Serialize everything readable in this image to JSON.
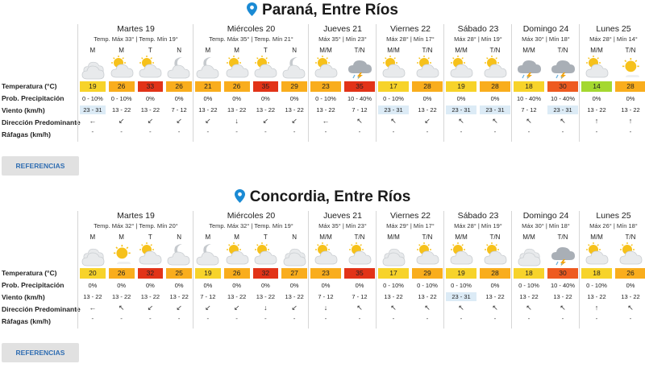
{
  "row_labels": {
    "temp": "Temperatura (°C)",
    "prob": "Prob. Precipitación",
    "wind": "Viento (km/h)",
    "dir": "Dirección Predominante",
    "gust": "Ráfagas (km/h)"
  },
  "references_label": "REFERENCIAS",
  "colors": {
    "c14": "#a4d830",
    "c17_20": "#f7d32a",
    "c21_29": "#f9ad1d",
    "c30": "#ee5a20",
    "c32_35": "#e23318",
    "wind_hl": "#dcebf6",
    "pin": "#1a8ad4"
  },
  "cities": [
    {
      "title": "Paraná, Entre Ríos",
      "days": [
        {
          "name": "Martes 19",
          "temps": "Temp. Máx 33° | Temp. Mín 19°",
          "periods": [
            {
              "label": "M",
              "icon": "cloudy",
              "temp": "19",
              "tcolor": "#f7d32a",
              "prob": "0 - 10%",
              "wind": "23 - 31",
              "hl": true,
              "dir": "←",
              "gust": "-"
            },
            {
              "label": "M",
              "icon": "partly-sunny",
              "temp": "26",
              "tcolor": "#f9ad1d",
              "prob": "0 - 10%",
              "wind": "13 - 22",
              "hl": false,
              "dir": "↙",
              "gust": "-"
            },
            {
              "label": "T",
              "icon": "partly-sunny",
              "temp": "33",
              "tcolor": "#e23318",
              "prob": "0%",
              "wind": "13 - 22",
              "hl": false,
              "dir": "↙",
              "gust": "-"
            },
            {
              "label": "N",
              "icon": "cloudy-moon",
              "temp": "26",
              "tcolor": "#f9ad1d",
              "prob": "0%",
              "wind": "7 - 12",
              "hl": false,
              "dir": "↙",
              "gust": "-"
            }
          ]
        },
        {
          "name": "Miércoles 20",
          "temps": "Temp. Máx 35° | Temp. Mín 21°",
          "periods": [
            {
              "label": "M",
              "icon": "cloudy-moon",
              "temp": "21",
              "tcolor": "#f9ad1d",
              "prob": "0%",
              "wind": "13 - 22",
              "hl": false,
              "dir": "↙",
              "gust": "-"
            },
            {
              "label": "M",
              "icon": "partly-sunny",
              "temp": "26",
              "tcolor": "#f9ad1d",
              "prob": "0%",
              "wind": "13 - 22",
              "hl": false,
              "dir": "↓",
              "gust": "-"
            },
            {
              "label": "T",
              "icon": "partly-sunny",
              "temp": "35",
              "tcolor": "#e23318",
              "prob": "0%",
              "wind": "13 - 22",
              "hl": false,
              "dir": "↙",
              "gust": "-"
            },
            {
              "label": "N",
              "icon": "cloudy-moon",
              "temp": "29",
              "tcolor": "#f9ad1d",
              "prob": "0%",
              "wind": "13 - 22",
              "hl": false,
              "dir": "↙",
              "gust": "-"
            }
          ]
        },
        {
          "name": "Jueves 21",
          "temps": "Máx 35° | Mín 23°",
          "periods": [
            {
              "label": "M/M",
              "icon": "partly-sunny",
              "temp": "23",
              "tcolor": "#f9ad1d",
              "prob": "0 - 10%",
              "wind": "13 - 22",
              "hl": false,
              "dir": "←",
              "gust": "-"
            },
            {
              "label": "T/N",
              "icon": "storm",
              "temp": "35",
              "tcolor": "#e23318",
              "prob": "10 - 40%",
              "wind": "7 - 12",
              "hl": false,
              "dir": "↖",
              "gust": "-"
            }
          ]
        },
        {
          "name": "Viernes 22",
          "temps": "Máx 28° | Mín 17°",
          "periods": [
            {
              "label": "M/M",
              "icon": "partly-sunny",
              "temp": "17",
              "tcolor": "#f7d32a",
              "prob": "0 - 10%",
              "wind": "23 - 31",
              "hl": true,
              "dir": "↖",
              "gust": "-"
            },
            {
              "label": "T/N",
              "icon": "partly-sunny",
              "temp": "28",
              "tcolor": "#f9ad1d",
              "prob": "0%",
              "wind": "13 - 22",
              "hl": false,
              "dir": "↙",
              "gust": "-"
            }
          ]
        },
        {
          "name": "Sábado 23",
          "temps": "Máx 28° | Mín 19°",
          "periods": [
            {
              "label": "M/M",
              "icon": "partly-sunny",
              "temp": "19",
              "tcolor": "#f7d32a",
              "prob": "0%",
              "wind": "23 - 31",
              "hl": true,
              "dir": "↖",
              "gust": "-"
            },
            {
              "label": "T/N",
              "icon": "partly-sunny",
              "temp": "28",
              "tcolor": "#f9ad1d",
              "prob": "0%",
              "wind": "23 - 31",
              "hl": true,
              "dir": "↖",
              "gust": "-"
            }
          ]
        },
        {
          "name": "Domingo 24",
          "temps": "Máx 30° | Mín 18°",
          "periods": [
            {
              "label": "M/M",
              "icon": "storm",
              "temp": "18",
              "tcolor": "#f7d32a",
              "prob": "10 - 40%",
              "wind": "7 - 12",
              "hl": false,
              "dir": "↖",
              "gust": "-"
            },
            {
              "label": "T/N",
              "icon": "storm",
              "temp": "30",
              "tcolor": "#ee5a20",
              "prob": "10 - 40%",
              "wind": "23 - 31",
              "hl": true,
              "dir": "↖",
              "gust": "-"
            }
          ]
        },
        {
          "name": "Lunes 25",
          "temps": "Máx 28° | Mín 14°",
          "periods": [
            {
              "label": "M/M",
              "icon": "partly-sunny",
              "temp": "14",
              "tcolor": "#a4d830",
              "prob": "0%",
              "wind": "13 - 22",
              "hl": false,
              "dir": "↑",
              "gust": "-"
            },
            {
              "label": "T/N",
              "icon": "sunny",
              "temp": "28",
              "tcolor": "#f9ad1d",
              "prob": "0%",
              "wind": "13 - 22",
              "hl": false,
              "dir": "↑",
              "gust": "-"
            }
          ]
        }
      ]
    },
    {
      "title": "Concordia, Entre Ríos",
      "days": [
        {
          "name": "Martes 19",
          "temps": "Temp. Máx 32° | Temp. Mín 20°",
          "periods": [
            {
              "label": "M",
              "icon": "cloudy",
              "temp": "20",
              "tcolor": "#f7d32a",
              "prob": "0%",
              "wind": "13 - 22",
              "hl": false,
              "dir": "←",
              "gust": "-"
            },
            {
              "label": "M",
              "icon": "sunny",
              "temp": "26",
              "tcolor": "#f9ad1d",
              "prob": "0%",
              "wind": "13 - 22",
              "hl": false,
              "dir": "↖",
              "gust": "-"
            },
            {
              "label": "T",
              "icon": "partly-sunny",
              "temp": "32",
              "tcolor": "#e23318",
              "prob": "0%",
              "wind": "13 - 22",
              "hl": false,
              "dir": "↙",
              "gust": "-"
            },
            {
              "label": "N",
              "icon": "cloudy-moon",
              "temp": "25",
              "tcolor": "#f9ad1d",
              "prob": "0%",
              "wind": "13 - 22",
              "hl": false,
              "dir": "↙",
              "gust": "-"
            }
          ]
        },
        {
          "name": "Miércoles 20",
          "temps": "Temp. Máx 32° | Temp. Mín 19°",
          "periods": [
            {
              "label": "M",
              "icon": "cloudy-moon",
              "temp": "19",
              "tcolor": "#f7d32a",
              "prob": "0%",
              "wind": "7 - 12",
              "hl": false,
              "dir": "↙",
              "gust": "-"
            },
            {
              "label": "M",
              "icon": "partly-sunny",
              "temp": "26",
              "tcolor": "#f9ad1d",
              "prob": "0%",
              "wind": "13 - 22",
              "hl": false,
              "dir": "↙",
              "gust": "-"
            },
            {
              "label": "T",
              "icon": "partly-sunny",
              "temp": "32",
              "tcolor": "#e23318",
              "prob": "0%",
              "wind": "13 - 22",
              "hl": false,
              "dir": "↓",
              "gust": "-"
            },
            {
              "label": "N",
              "icon": "cloudy",
              "temp": "27",
              "tcolor": "#f9ad1d",
              "prob": "0%",
              "wind": "13 - 22",
              "hl": false,
              "dir": "↙",
              "gust": "-"
            }
          ]
        },
        {
          "name": "Jueves 21",
          "temps": "Máx 35° | Mín 23°",
          "periods": [
            {
              "label": "M/M",
              "icon": "partly-sunny",
              "temp": "23",
              "tcolor": "#f9ad1d",
              "prob": "0%",
              "wind": "7 - 12",
              "hl": false,
              "dir": "↓",
              "gust": "-"
            },
            {
              "label": "T/N",
              "icon": "partly-sunny",
              "temp": "35",
              "tcolor": "#e23318",
              "prob": "0%",
              "wind": "7 - 12",
              "hl": false,
              "dir": "↖",
              "gust": "-"
            }
          ]
        },
        {
          "name": "Viernes 22",
          "temps": "Máx 29° | Mín 17°",
          "periods": [
            {
              "label": "M/M",
              "icon": "cloudy",
              "temp": "17",
              "tcolor": "#f7d32a",
              "prob": "0 - 10%",
              "wind": "13 - 22",
              "hl": false,
              "dir": "↖",
              "gust": "-"
            },
            {
              "label": "T/N",
              "icon": "partly-sunny",
              "temp": "29",
              "tcolor": "#f9ad1d",
              "prob": "0 - 10%",
              "wind": "13 - 22",
              "hl": false,
              "dir": "↖",
              "gust": "-"
            }
          ]
        },
        {
          "name": "Sábado 23",
          "temps": "Máx 28° | Mín 19°",
          "periods": [
            {
              "label": "M/M",
              "icon": "partly-sunny",
              "temp": "19",
              "tcolor": "#f7d32a",
              "prob": "0 - 10%",
              "wind": "23 - 31",
              "hl": true,
              "dir": "↖",
              "gust": "-"
            },
            {
              "label": "T/N",
              "icon": "partly-sunny",
              "temp": "28",
              "tcolor": "#f9ad1d",
              "prob": "0%",
              "wind": "13 - 22",
              "hl": false,
              "dir": "↖",
              "gust": "-"
            }
          ]
        },
        {
          "name": "Domingo 24",
          "temps": "Máx 30° | Mín 18°",
          "periods": [
            {
              "label": "M/M",
              "icon": "cloudy",
              "temp": "18",
              "tcolor": "#f7d32a",
              "prob": "0 - 10%",
              "wind": "13 - 22",
              "hl": false,
              "dir": "↖",
              "gust": "-"
            },
            {
              "label": "T/N",
              "icon": "storm",
              "temp": "30",
              "tcolor": "#ee5a20",
              "prob": "10 - 40%",
              "wind": "13 - 22",
              "hl": false,
              "dir": "↖",
              "gust": "-"
            }
          ]
        },
        {
          "name": "Lunes 25",
          "temps": "Máx 26° | Mín 18°",
          "periods": [
            {
              "label": "M/M",
              "icon": "partly-sunny",
              "temp": "18",
              "tcolor": "#f7d32a",
              "prob": "0 - 10%",
              "wind": "13 - 22",
              "hl": false,
              "dir": "↑",
              "gust": "-"
            },
            {
              "label": "T/N",
              "icon": "partly-sunny",
              "temp": "26",
              "tcolor": "#f9ad1d",
              "prob": "0%",
              "wind": "13 - 22",
              "hl": false,
              "dir": "↖",
              "gust": "-"
            }
          ]
        }
      ]
    }
  ]
}
